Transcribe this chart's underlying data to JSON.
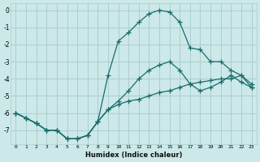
{
  "xlabel": "Humidex (Indice chaleur)",
  "bg_color": "#cce8e8",
  "grid_color": "#aacfcf",
  "line_color": "#1a6b6b",
  "xlim": [
    -0.5,
    23.5
  ],
  "ylim": [
    -7.8,
    0.4
  ],
  "yticks": [
    0,
    -1,
    -2,
    -3,
    -4,
    -5,
    -6,
    -7
  ],
  "xticks": [
    0,
    1,
    2,
    3,
    4,
    5,
    6,
    7,
    8,
    9,
    10,
    11,
    12,
    13,
    14,
    15,
    16,
    17,
    18,
    19,
    20,
    21,
    22,
    23
  ],
  "line1_x": [
    0,
    1,
    2,
    3,
    4,
    5,
    6,
    7,
    8,
    9,
    10,
    11,
    12,
    13,
    14,
    15,
    16,
    17,
    18,
    19,
    20,
    21,
    22,
    23
  ],
  "line1_y": [
    -6.0,
    -6.3,
    -6.6,
    -7.0,
    -7.0,
    -7.5,
    -7.5,
    -7.3,
    -6.5,
    -5.8,
    -5.3,
    -4.7,
    -4.0,
    -3.5,
    -3.2,
    -3.0,
    -3.5,
    -4.3,
    -4.7,
    -4.5,
    -4.2,
    -3.8,
    -4.2,
    -4.5
  ],
  "line2_x": [
    0,
    1,
    2,
    3,
    4,
    5,
    6,
    7,
    8,
    9,
    10,
    11,
    12,
    13,
    14,
    15,
    16,
    17,
    18,
    19,
    20,
    21,
    22,
    23
  ],
  "line2_y": [
    -6.0,
    -6.3,
    -6.6,
    -7.0,
    -7.0,
    -7.5,
    -7.5,
    -7.3,
    -6.5,
    -3.8,
    -1.8,
    -1.3,
    -0.7,
    -0.2,
    0.0,
    -0.1,
    -0.7,
    -2.2,
    -2.3,
    -3.0,
    -3.0,
    -3.5,
    -3.8,
    -4.5
  ],
  "line3_x": [
    0,
    1,
    2,
    3,
    4,
    5,
    6,
    7,
    8,
    9,
    10,
    11,
    12,
    13,
    14,
    15,
    16,
    17,
    18,
    19,
    20,
    21,
    22,
    23
  ],
  "line3_y": [
    -6.0,
    -6.3,
    -6.6,
    -7.0,
    -7.0,
    -7.5,
    -7.5,
    -7.3,
    -6.5,
    -5.8,
    -5.5,
    -5.3,
    -5.2,
    -5.0,
    -4.8,
    -4.7,
    -4.5,
    -4.3,
    -4.2,
    -4.1,
    -4.0,
    -4.0,
    -3.8,
    -4.3
  ]
}
